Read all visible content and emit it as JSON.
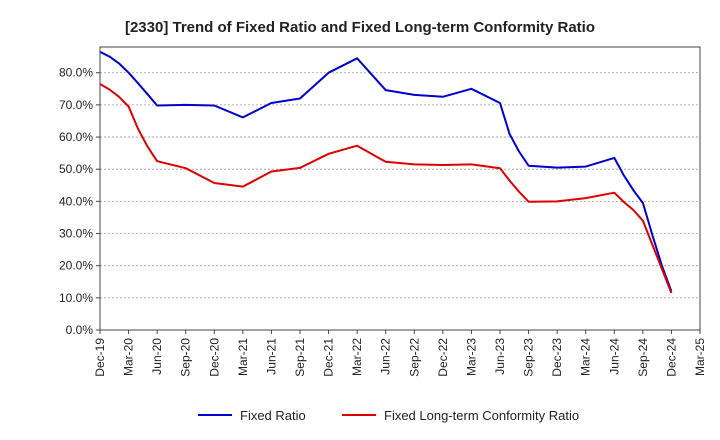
{
  "chart_data": {
    "type": "line",
    "title": "[2330]  Trend of Fixed Ratio and Fixed Long-term Conformity Ratio",
    "xlabel": "",
    "ylabel": "",
    "x_ticks": [
      "Dec-19",
      "Mar-20",
      "Jun-20",
      "Sep-20",
      "Dec-20",
      "Mar-21",
      "Jun-21",
      "Sep-21",
      "Dec-21",
      "Mar-22",
      "Jun-22",
      "Sep-22",
      "Dec-22",
      "Mar-23",
      "Jun-23",
      "Sep-23",
      "Dec-23",
      "Mar-24",
      "Jun-24",
      "Sep-24",
      "Dec-24",
      "Mar-25"
    ],
    "y_ticks": [
      "0.0%",
      "10.0%",
      "20.0%",
      "30.0%",
      "40.0%",
      "50.0%",
      "60.0%",
      "70.0%",
      "80.0%"
    ],
    "ylim": [
      0,
      88
    ],
    "grid": true,
    "legend_position": "bottom",
    "series": [
      {
        "name": "Fixed Ratio",
        "color": "#0000cc",
        "x": [
          "Dec-19",
          "Jan-20",
          "Feb-20",
          "Mar-20",
          "Apr-20",
          "May-20",
          "Jun-20",
          "Sep-20",
          "Dec-20",
          "Mar-21",
          "Jun-21",
          "Sep-21",
          "Dec-21",
          "Mar-22",
          "Jun-22",
          "Sep-22",
          "Dec-22",
          "Mar-23",
          "Jun-23",
          "Jul-23",
          "Aug-23",
          "Sep-23",
          "Dec-23",
          "Mar-24",
          "Jun-24",
          "Jul-24",
          "Aug-24",
          "Sep-24",
          "Oct-24",
          "Nov-24",
          "Dec-24"
        ],
        "values": [
          86.5,
          85.0,
          82.9,
          80.0,
          76.7,
          73.3,
          69.8,
          70.0,
          69.8,
          66.1,
          70.6,
          72.0,
          80.0,
          84.5,
          74.6,
          73.1,
          72.5,
          75.0,
          70.6,
          61.0,
          55.5,
          51.1,
          50.5,
          50.8,
          53.5,
          48.1,
          43.5,
          39.5,
          29.5,
          20.0,
          12.0
        ]
      },
      {
        "name": "Fixed Long-term Conformity Ratio",
        "color": "#dd0000",
        "x": [
          "Dec-19",
          "Jan-20",
          "Feb-20",
          "Mar-20",
          "Apr-20",
          "May-20",
          "Jun-20",
          "Sep-20",
          "Dec-20",
          "Mar-21",
          "Jun-21",
          "Sep-21",
          "Dec-21",
          "Mar-22",
          "Jun-22",
          "Sep-22",
          "Dec-22",
          "Mar-23",
          "Jun-23",
          "Jul-23",
          "Aug-23",
          "Sep-23",
          "Dec-23",
          "Mar-24",
          "Jun-24",
          "Jul-24",
          "Aug-24",
          "Sep-24",
          "Oct-24",
          "Nov-24",
          "Dec-24"
        ],
        "values": [
          76.5,
          74.8,
          72.5,
          69.5,
          62.5,
          57.0,
          52.5,
          50.3,
          45.7,
          44.6,
          49.3,
          50.4,
          54.8,
          57.3,
          52.3,
          51.5,
          51.3,
          51.5,
          50.3,
          46.5,
          43.0,
          39.9,
          40.0,
          41.0,
          42.7,
          39.8,
          37.3,
          34.0,
          26.5,
          19.0,
          11.5
        ]
      }
    ]
  }
}
